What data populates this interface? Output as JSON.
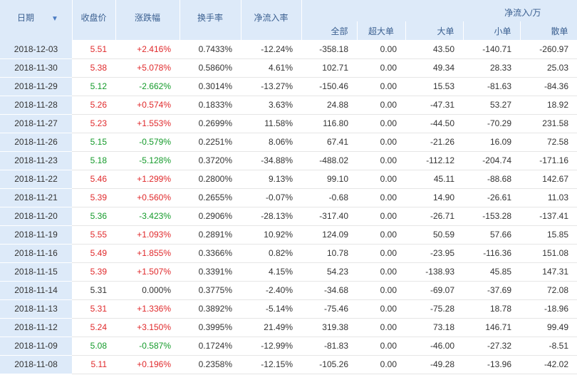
{
  "colors": {
    "up": "#e0292b",
    "down": "#149a2a",
    "flat": "#333333",
    "header_bg": "#ddeaf9",
    "header_text": "#3a5f90"
  },
  "header": {
    "date": "日期",
    "sort_icon": "sort-down-icon",
    "close": "收盘价",
    "change": "涨跌幅",
    "turnover": "换手率",
    "net_inflow_rate": "净流入率",
    "net_inflow_group": "净流入/万",
    "all": "全部",
    "extra_large": "超大单",
    "large": "大单",
    "small": "小单",
    "retail": "散单"
  },
  "rows": [
    {
      "date": "2018-12-03",
      "close": "5.51",
      "change": "+2.416%",
      "turnover": "0.7433%",
      "rate": "-12.24%",
      "all": "-358.18",
      "xl": "0.00",
      "large": "43.50",
      "small": "-140.71",
      "retail": "-260.97",
      "trend": "up"
    },
    {
      "date": "2018-11-30",
      "close": "5.38",
      "change": "+5.078%",
      "turnover": "0.5860%",
      "rate": "4.61%",
      "all": "102.71",
      "xl": "0.00",
      "large": "49.34",
      "small": "28.33",
      "retail": "25.03",
      "trend": "up"
    },
    {
      "date": "2018-11-29",
      "close": "5.12",
      "change": "-2.662%",
      "turnover": "0.3014%",
      "rate": "-13.27%",
      "all": "-150.46",
      "xl": "0.00",
      "large": "15.53",
      "small": "-81.63",
      "retail": "-84.36",
      "trend": "down"
    },
    {
      "date": "2018-11-28",
      "close": "5.26",
      "change": "+0.574%",
      "turnover": "0.1833%",
      "rate": "3.63%",
      "all": "24.88",
      "xl": "0.00",
      "large": "-47.31",
      "small": "53.27",
      "retail": "18.92",
      "trend": "up"
    },
    {
      "date": "2018-11-27",
      "close": "5.23",
      "change": "+1.553%",
      "turnover": "0.2699%",
      "rate": "11.58%",
      "all": "116.80",
      "xl": "0.00",
      "large": "-44.50",
      "small": "-70.29",
      "retail": "231.58",
      "trend": "up"
    },
    {
      "date": "2018-11-26",
      "close": "5.15",
      "change": "-0.579%",
      "turnover": "0.2251%",
      "rate": "8.06%",
      "all": "67.41",
      "xl": "0.00",
      "large": "-21.26",
      "small": "16.09",
      "retail": "72.58",
      "trend": "down"
    },
    {
      "date": "2018-11-23",
      "close": "5.18",
      "change": "-5.128%",
      "turnover": "0.3720%",
      "rate": "-34.88%",
      "all": "-488.02",
      "xl": "0.00",
      "large": "-112.12",
      "small": "-204.74",
      "retail": "-171.16",
      "trend": "down"
    },
    {
      "date": "2018-11-22",
      "close": "5.46",
      "change": "+1.299%",
      "turnover": "0.2800%",
      "rate": "9.13%",
      "all": "99.10",
      "xl": "0.00",
      "large": "45.11",
      "small": "-88.68",
      "retail": "142.67",
      "trend": "up"
    },
    {
      "date": "2018-11-21",
      "close": "5.39",
      "change": "+0.560%",
      "turnover": "0.2655%",
      "rate": "-0.07%",
      "all": "-0.68",
      "xl": "0.00",
      "large": "14.90",
      "small": "-26.61",
      "retail": "11.03",
      "trend": "up"
    },
    {
      "date": "2018-11-20",
      "close": "5.36",
      "change": "-3.423%",
      "turnover": "0.2906%",
      "rate": "-28.13%",
      "all": "-317.40",
      "xl": "0.00",
      "large": "-26.71",
      "small": "-153.28",
      "retail": "-137.41",
      "trend": "down"
    },
    {
      "date": "2018-11-19",
      "close": "5.55",
      "change": "+1.093%",
      "turnover": "0.2891%",
      "rate": "10.92%",
      "all": "124.09",
      "xl": "0.00",
      "large": "50.59",
      "small": "57.66",
      "retail": "15.85",
      "trend": "up"
    },
    {
      "date": "2018-11-16",
      "close": "5.49",
      "change": "+1.855%",
      "turnover": "0.3366%",
      "rate": "0.82%",
      "all": "10.78",
      "xl": "0.00",
      "large": "-23.95",
      "small": "-116.36",
      "retail": "151.08",
      "trend": "up"
    },
    {
      "date": "2018-11-15",
      "close": "5.39",
      "change": "+1.507%",
      "turnover": "0.3391%",
      "rate": "4.15%",
      "all": "54.23",
      "xl": "0.00",
      "large": "-138.93",
      "small": "45.85",
      "retail": "147.31",
      "trend": "up"
    },
    {
      "date": "2018-11-14",
      "close": "5.31",
      "change": "0.000%",
      "turnover": "0.3775%",
      "rate": "-2.40%",
      "all": "-34.68",
      "xl": "0.00",
      "large": "-69.07",
      "small": "-37.69",
      "retail": "72.08",
      "trend": "flat"
    },
    {
      "date": "2018-11-13",
      "close": "5.31",
      "change": "+1.336%",
      "turnover": "0.3892%",
      "rate": "-5.14%",
      "all": "-75.46",
      "xl": "0.00",
      "large": "-75.28",
      "small": "18.78",
      "retail": "-18.96",
      "trend": "up"
    },
    {
      "date": "2018-11-12",
      "close": "5.24",
      "change": "+3.150%",
      "turnover": "0.3995%",
      "rate": "21.49%",
      "all": "319.38",
      "xl": "0.00",
      "large": "73.18",
      "small": "146.71",
      "retail": "99.49",
      "trend": "up"
    },
    {
      "date": "2018-11-09",
      "close": "5.08",
      "change": "-0.587%",
      "turnover": "0.1724%",
      "rate": "-12.99%",
      "all": "-81.83",
      "xl": "0.00",
      "large": "-46.00",
      "small": "-27.32",
      "retail": "-8.51",
      "trend": "down"
    },
    {
      "date": "2018-11-08",
      "close": "5.11",
      "change": "+0.196%",
      "turnover": "0.2358%",
      "rate": "-12.15%",
      "all": "-105.26",
      "xl": "0.00",
      "large": "-49.28",
      "small": "-13.96",
      "retail": "-42.02",
      "trend": "up"
    }
  ]
}
